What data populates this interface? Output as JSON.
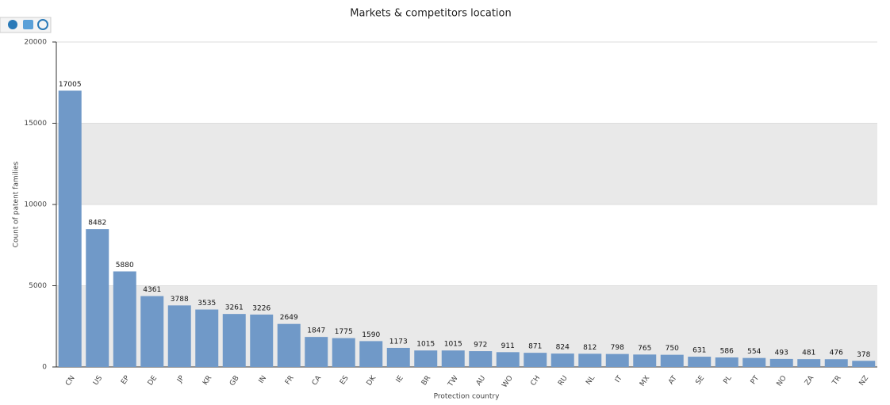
{
  "chart_data": {
    "type": "bar",
    "title": "Markets & competitors location",
    "x_label": "Protection country",
    "y_label": "Count of patent families",
    "categories": [
      "CN",
      "US",
      "EP",
      "DE",
      "JP",
      "KR",
      "GB",
      "IN",
      "FR",
      "CA",
      "ES",
      "DK",
      "IE",
      "BR",
      "TW",
      "AU",
      "WO",
      "CH",
      "RU",
      "NL",
      "IT",
      "MX",
      "AT",
      "SE",
      "PL",
      "PT",
      "NO",
      "ZA",
      "TR",
      "NZ"
    ],
    "values": [
      17005,
      8482,
      5880,
      4361,
      3788,
      3535,
      3261,
      3226,
      2649,
      1847,
      1775,
      1590,
      1173,
      1015,
      1015,
      972,
      911,
      871,
      824,
      812,
      798,
      765,
      750,
      631,
      586,
      554,
      493,
      481,
      476,
      378
    ],
    "color": "#7099c8",
    "ylim": [
      0,
      20000
    ],
    "yticks": [
      0,
      5000,
      10000,
      15000,
      20000
    ],
    "grid": true
  }
}
